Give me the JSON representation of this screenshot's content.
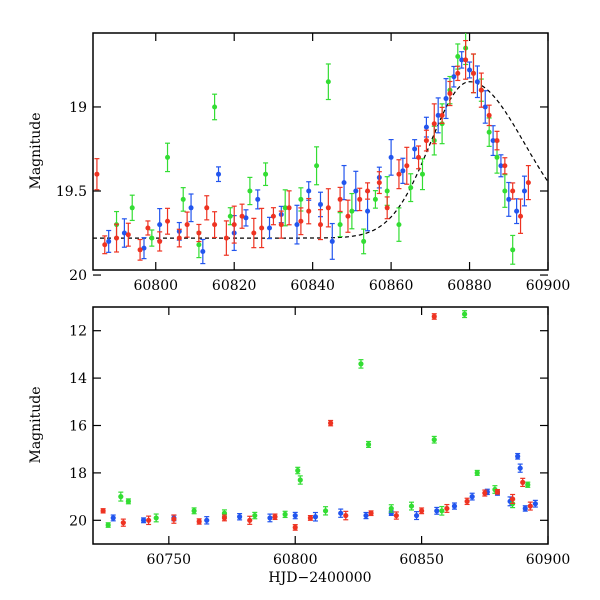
{
  "chart_data": [
    {
      "type": "scatter",
      "xlim": [
        60784,
        60900
      ],
      "ylim": [
        19.97,
        18.56
      ],
      "y_inverted": true,
      "x_ticks": [
        60800,
        60820,
        60840,
        60860,
        60880,
        60900
      ],
      "y_ticks": [
        19,
        19.5,
        20
      ],
      "x_tick_labels": [
        "60800",
        "60820",
        "60840",
        "60860",
        "60880",
        "60900"
      ],
      "y_tick_labels": [
        "19",
        "19.5",
        "20"
      ],
      "xlabel": "",
      "ylabel": "Magnitude",
      "grid": false,
      "model_curve": {
        "color": "#000000",
        "baseline": 19.78,
        "peak_x": 60880,
        "peak_mag": 18.85,
        "rise_tau": 10,
        "decay_tau": 14
      },
      "series": [
        {
          "color": "#2255ee",
          "points": [
            [
              60788,
              19.8
            ],
            [
              60792,
              19.75
            ],
            [
              60797,
              19.84
            ],
            [
              60801,
              19.7
            ],
            [
              60806,
              19.74
            ],
            [
              60809,
              19.6
            ],
            [
              60812,
              19.86
            ],
            [
              60816,
              19.4
            ],
            [
              60820,
              19.75
            ],
            [
              60823,
              19.66
            ],
            [
              60826,
              19.55
            ],
            [
              60829,
              19.72
            ],
            [
              60832,
              19.64
            ],
            [
              60836,
              19.7
            ],
            [
              60839,
              19.5
            ],
            [
              60842,
              19.58
            ],
            [
              60845,
              19.8
            ],
            [
              60848,
              19.45
            ],
            [
              60851,
              19.5
            ],
            [
              60854,
              19.62
            ],
            [
              60857,
              19.42
            ],
            [
              60860,
              19.3
            ],
            [
              60863,
              19.38
            ],
            [
              60866,
              19.25
            ],
            [
              60869,
              19.12
            ],
            [
              60872,
              19.05
            ],
            [
              60874,
              18.95
            ],
            [
              60876,
              18.82
            ],
            [
              60878,
              18.72
            ],
            [
              60880,
              18.78
            ],
            [
              60882,
              18.85
            ],
            [
              60884,
              19.0
            ],
            [
              60886,
              19.2
            ],
            [
              60888,
              19.35
            ],
            [
              60890,
              19.55
            ],
            [
              60892,
              19.62
            ],
            [
              60894,
              19.5
            ]
          ]
        },
        {
          "color": "#33dd33",
          "points": [
            [
              60790,
              19.7
            ],
            [
              60794,
              19.6
            ],
            [
              60799,
              19.78
            ],
            [
              60803,
              19.3
            ],
            [
              60807,
              19.55
            ],
            [
              60811,
              19.82
            ],
            [
              60815,
              19.0
            ],
            [
              60819,
              19.65
            ],
            [
              60824,
              19.5
            ],
            [
              60828,
              19.4
            ],
            [
              60833,
              19.6
            ],
            [
              60837,
              19.55
            ],
            [
              60841,
              19.35
            ],
            [
              60844,
              18.85
            ],
            [
              60847,
              19.7
            ],
            [
              60850,
              19.62
            ],
            [
              60853,
              19.8
            ],
            [
              60856,
              19.55
            ],
            [
              60859,
              19.5
            ],
            [
              60862,
              19.7
            ],
            [
              60865,
              19.48
            ],
            [
              60868,
              19.4
            ],
            [
              60871,
              19.2
            ],
            [
              60873,
              19.1
            ],
            [
              60875,
              18.9
            ],
            [
              60877,
              18.7
            ],
            [
              60879,
              18.65
            ],
            [
              60881,
              18.8
            ],
            [
              60883,
              18.9
            ],
            [
              60885,
              19.15
            ],
            [
              60887,
              19.3
            ],
            [
              60889,
              19.5
            ],
            [
              60891,
              19.85
            ]
          ]
        },
        {
          "color": "#ee3322",
          "points": [
            [
              60785,
              19.4
            ],
            [
              60787,
              19.82
            ],
            [
              60790,
              19.78
            ],
            [
              60793,
              19.76
            ],
            [
              60796,
              19.85
            ],
            [
              60798,
              19.72
            ],
            [
              60801,
              19.8
            ],
            [
              60803,
              19.68
            ],
            [
              60806,
              19.78
            ],
            [
              60808,
              19.7
            ],
            [
              60811,
              19.75
            ],
            [
              60813,
              19.6
            ],
            [
              60815,
              19.7
            ],
            [
              60818,
              19.78
            ],
            [
              60820,
              19.7
            ],
            [
              60822,
              19.65
            ],
            [
              60825,
              19.75
            ],
            [
              60827,
              19.72
            ],
            [
              60830,
              19.65
            ],
            [
              60832,
              19.7
            ],
            [
              60834,
              19.6
            ],
            [
              60837,
              19.68
            ],
            [
              60839,
              19.62
            ],
            [
              60842,
              19.7
            ],
            [
              60844,
              19.6
            ],
            [
              60847,
              19.55
            ],
            [
              60849,
              19.65
            ],
            [
              60852,
              19.55
            ],
            [
              60854,
              19.5
            ],
            [
              60857,
              19.45
            ],
            [
              60859,
              19.6
            ],
            [
              60862,
              19.4
            ],
            [
              60864,
              19.35
            ],
            [
              60867,
              19.3
            ],
            [
              60869,
              19.2
            ],
            [
              60871,
              19.1
            ],
            [
              60873,
              19.05
            ],
            [
              60875,
              18.92
            ],
            [
              60877,
              18.8
            ],
            [
              60879,
              18.72
            ],
            [
              60881,
              18.8
            ],
            [
              60883,
              18.9
            ],
            [
              60885,
              19.05
            ],
            [
              60887,
              19.2
            ],
            [
              60889,
              19.35
            ],
            [
              60891,
              19.5
            ],
            [
              60893,
              19.65
            ],
            [
              60895,
              19.45
            ]
          ]
        }
      ]
    },
    {
      "type": "scatter",
      "xlim": [
        60720,
        60900
      ],
      "ylim": [
        21.0,
        11.0
      ],
      "y_inverted": true,
      "x_ticks": [
        60750,
        60800,
        60850,
        60900
      ],
      "y_ticks": [
        12,
        14,
        16,
        18,
        20
      ],
      "x_tick_labels": [
        "60750",
        "60800",
        "60850",
        "60900"
      ],
      "y_tick_labels": [
        "12",
        "14",
        "16",
        "18",
        "20"
      ],
      "xlabel": "HJD−2400000",
      "ylabel": "Magnitude",
      "grid": false,
      "series": [
        {
          "color": "#2255ee",
          "points": [
            [
              60728,
              19.9
            ],
            [
              60740,
              20.0
            ],
            [
              60752,
              19.9
            ],
            [
              60765,
              20.0
            ],
            [
              60778,
              19.85
            ],
            [
              60790,
              19.9
            ],
            [
              60800,
              19.8
            ],
            [
              60808,
              19.85
            ],
            [
              60818,
              19.7
            ],
            [
              60828,
              19.8
            ],
            [
              60838,
              19.7
            ],
            [
              60848,
              19.8
            ],
            [
              60856,
              19.6
            ],
            [
              60863,
              19.4
            ],
            [
              60870,
              19.0
            ],
            [
              60876,
              18.8
            ],
            [
              60880,
              18.85
            ],
            [
              60885,
              19.2
            ],
            [
              60888,
              17.3
            ],
            [
              60889,
              17.8
            ],
            [
              60891,
              19.5
            ],
            [
              60895,
              19.3
            ]
          ]
        },
        {
          "color": "#33dd33",
          "points": [
            [
              60726,
              20.2
            ],
            [
              60731,
              19.0
            ],
            [
              60734,
              19.2
            ],
            [
              60745,
              19.9
            ],
            [
              60760,
              19.6
            ],
            [
              60772,
              19.7
            ],
            [
              60784,
              19.8
            ],
            [
              60796,
              19.75
            ],
            [
              60801,
              17.9
            ],
            [
              60802,
              18.3
            ],
            [
              60812,
              19.6
            ],
            [
              60826,
              13.4
            ],
            [
              60829,
              16.8
            ],
            [
              60838,
              19.5
            ],
            [
              60846,
              19.4
            ],
            [
              60855,
              16.6
            ],
            [
              60858,
              19.6
            ],
            [
              60867,
              11.3
            ],
            [
              60872,
              18.0
            ],
            [
              60879,
              18.7
            ],
            [
              60886,
              19.3
            ],
            [
              60892,
              18.5
            ]
          ]
        },
        {
          "color": "#ee3322",
          "points": [
            [
              60724,
              19.6
            ],
            [
              60732,
              20.1
            ],
            [
              60742,
              20.0
            ],
            [
              60752,
              19.95
            ],
            [
              60762,
              20.05
            ],
            [
              60772,
              19.9
            ],
            [
              60782,
              20.0
            ],
            [
              60792,
              19.85
            ],
            [
              60800,
              20.3
            ],
            [
              60806,
              19.9
            ],
            [
              60814,
              15.9
            ],
            [
              60820,
              19.8
            ],
            [
              60830,
              19.7
            ],
            [
              60840,
              19.8
            ],
            [
              60850,
              19.6
            ],
            [
              60855,
              11.4
            ],
            [
              60860,
              19.5
            ],
            [
              60868,
              19.2
            ],
            [
              60875,
              18.85
            ],
            [
              60880,
              18.8
            ],
            [
              60886,
              19.1
            ],
            [
              60890,
              18.4
            ],
            [
              60893,
              19.4
            ]
          ]
        }
      ]
    }
  ]
}
